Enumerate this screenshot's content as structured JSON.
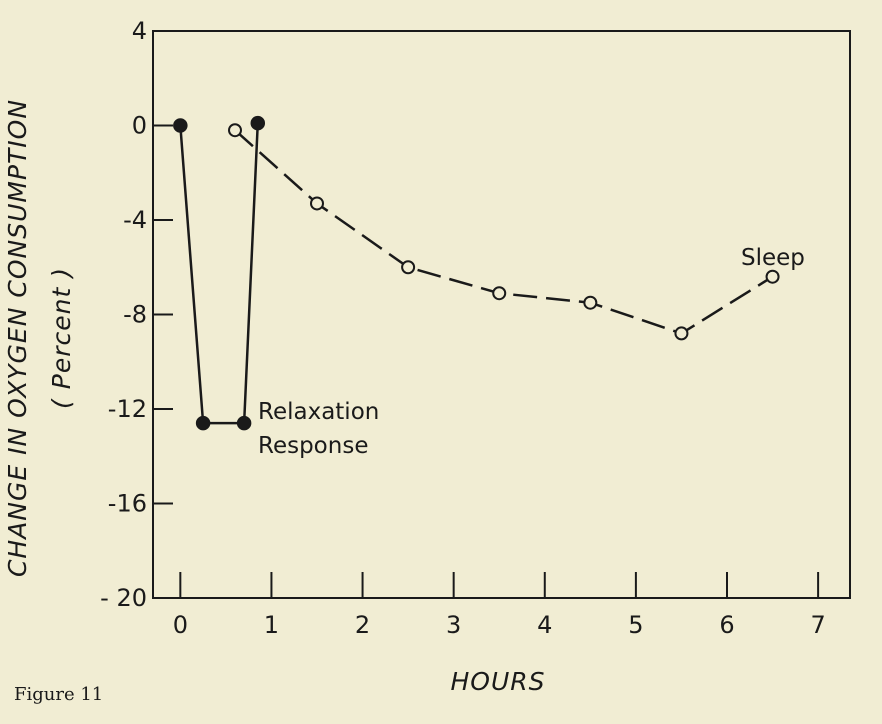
{
  "figure_caption": "Figure 11",
  "chart_data": {
    "type": "line",
    "xlabel": "HOURS",
    "ylabel": "CHANGE IN OXYGEN CONSUMPTION",
    "ylabel_sub": "( Percent )",
    "xlim": [
      -0.3,
      7.35
    ],
    "ylim": [
      -20,
      4
    ],
    "x_ticks": [
      0,
      1,
      2,
      3,
      4,
      5,
      6,
      7
    ],
    "y_ticks": [
      4,
      0,
      -4,
      -8,
      -12,
      -16,
      -20
    ],
    "y_tick_labels": [
      "4",
      "0",
      "-4",
      "-8",
      "-12",
      "-16",
      "- 20"
    ],
    "grid": false,
    "series": [
      {
        "name": "Relaxation Response",
        "marker": "filled-circle",
        "line_style": "solid",
        "x": [
          0,
          0.25,
          0.7,
          0.85
        ],
        "y": [
          0,
          -12.6,
          -12.6,
          0.1
        ]
      },
      {
        "name": "Sleep",
        "marker": "open-circle",
        "line_style": "dashed",
        "x": [
          0.6,
          1.5,
          2.5,
          3.5,
          4.5,
          5.5,
          6.5
        ],
        "y": [
          -0.2,
          -3.3,
          -6.0,
          -7.1,
          -7.5,
          -8.8,
          -6.4
        ]
      }
    ],
    "annotations": [
      {
        "text": "Relaxation",
        "series": "Relaxation Response"
      },
      {
        "text": "Response",
        "series": "Relaxation Response"
      },
      {
        "text": "Sleep",
        "series": "Sleep"
      }
    ]
  }
}
